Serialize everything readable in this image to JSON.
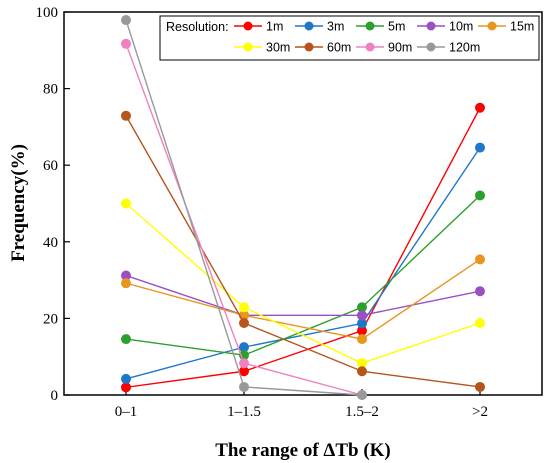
{
  "chart_data": {
    "type": "line",
    "xlabel": "The range of ΔTb (K)",
    "ylabel": "Frequency(%)",
    "categories": [
      "0–1",
      "1–1.5",
      "1.5–2",
      ">2"
    ],
    "ylim": [
      0,
      100
    ],
    "yticks": [
      0,
      20,
      40,
      60,
      80,
      100
    ],
    "grid": false,
    "legend": {
      "title": "Resolution:",
      "placement": "top-right"
    },
    "series": [
      {
        "name": "1m",
        "color": "#ff0000",
        "values": [
          2.0,
          6.2,
          16.8,
          75.0
        ]
      },
      {
        "name": "3m",
        "color": "#1f77c9",
        "values": [
          4.2,
          12.5,
          18.7,
          64.6
        ]
      },
      {
        "name": "5m",
        "color": "#2ca02c",
        "values": [
          14.6,
          10.4,
          22.9,
          52.1
        ]
      },
      {
        "name": "10m",
        "color": "#9b4fc0",
        "values": [
          31.2,
          20.8,
          20.8,
          27.1
        ]
      },
      {
        "name": "15m",
        "color": "#e8961e",
        "values": [
          29.2,
          20.8,
          14.6,
          35.4
        ]
      },
      {
        "name": "30m",
        "color": "#ffff00",
        "values": [
          50.0,
          22.9,
          8.3,
          18.8
        ]
      },
      {
        "name": "60m",
        "color": "#b5541b",
        "values": [
          72.9,
          18.8,
          6.2,
          2.1
        ]
      },
      {
        "name": "90m",
        "color": "#f080c0",
        "values": [
          91.7,
          8.3,
          0.0,
          null
        ]
      },
      {
        "name": "120m",
        "color": "#999999",
        "values": [
          97.9,
          2.1,
          0.0,
          null
        ]
      }
    ]
  }
}
